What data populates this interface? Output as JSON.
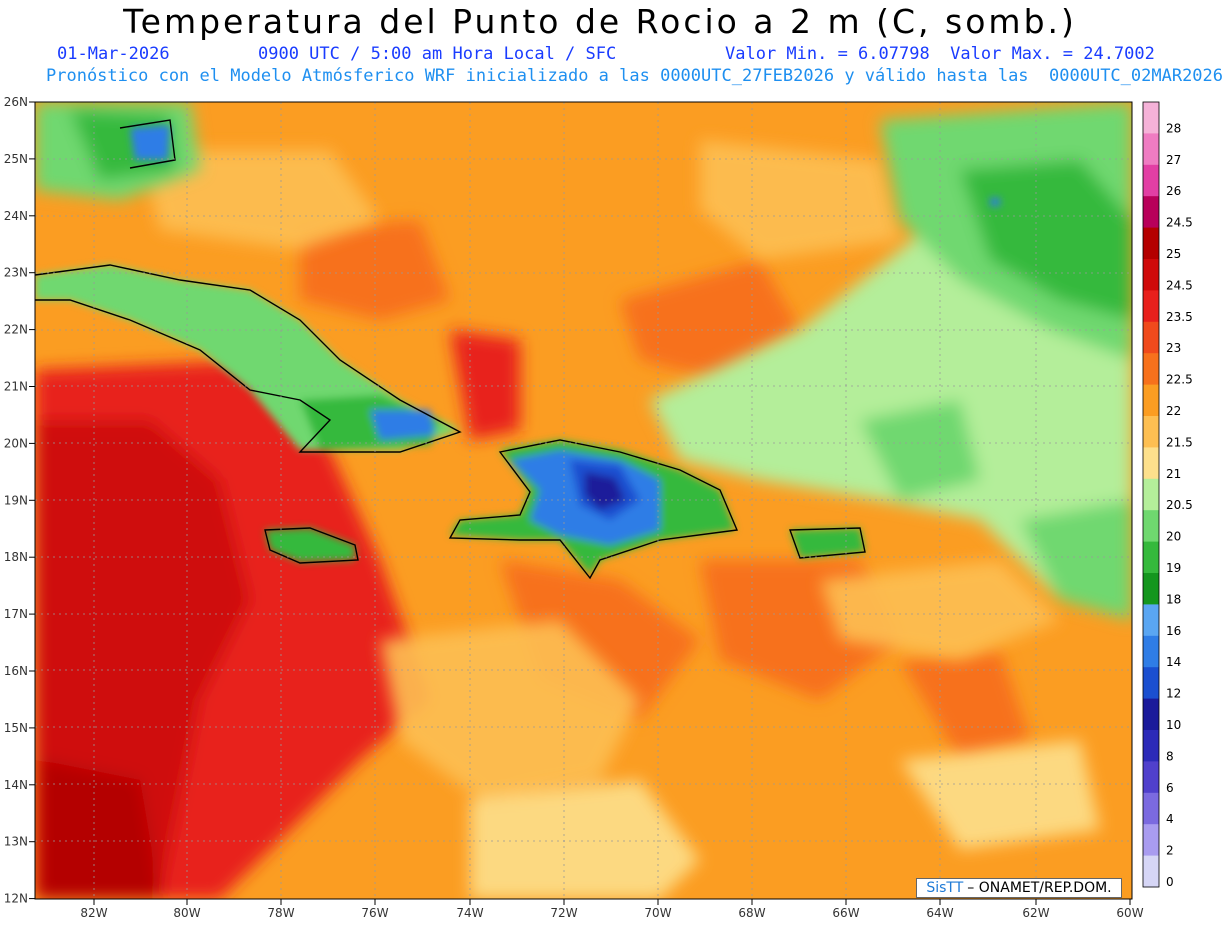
{
  "header": {
    "title": "Temperatura del Punto de Rocio a 2 m (C, somb.)",
    "date": "01-Mar-2026",
    "time": "0900 UTC / 5:00 am Hora Local / SFC",
    "minmax": "Valor Min. = 6.07798  Valor Max. = 24.7002",
    "description": "Pronóstico con el Modelo Atmósferico WRF inicializado a las 0000UTC_27FEB2026 y válido hasta las  0000UTC_02MAR2026"
  },
  "axes": {
    "lon_labels": [
      "82W",
      "80W",
      "78W",
      "76W",
      "74W",
      "72W",
      "70W",
      "68W",
      "66W",
      "64W",
      "62W",
      "60W"
    ],
    "lat_labels": [
      "26N",
      "25N",
      "24N",
      "23N",
      "22N",
      "21N",
      "20N",
      "19N",
      "18N",
      "17N",
      "16N",
      "15N",
      "14N",
      "13N",
      "12N"
    ]
  },
  "colorbar": {
    "levels": [
      {
        "label": "28",
        "color": "#f5b2d8"
      },
      {
        "label": "27",
        "color": "#ef7cc2"
      },
      {
        "label": "26",
        "color": "#e23fa4"
      },
      {
        "label": "24.5",
        "color": "#b8005a"
      },
      {
        "label": "25",
        "color": "#b40000"
      },
      {
        "label": "24.5",
        "color": "#cf0a0a"
      },
      {
        "label": "23.5",
        "color": "#e8201c"
      },
      {
        "label": "23",
        "color": "#f04a1c"
      },
      {
        "label": "22.5",
        "color": "#f7711c"
      },
      {
        "label": "22",
        "color": "#fb9d22"
      },
      {
        "label": "21.5",
        "color": "#fdbf52"
      },
      {
        "label": "21",
        "color": "#fde08c"
      },
      {
        "label": "20.5",
        "color": "#b4ee9a"
      },
      {
        "label": "20",
        "color": "#6fd86f"
      },
      {
        "label": "19",
        "color": "#35b93c"
      },
      {
        "label": "18",
        "color": "#14961e"
      },
      {
        "label": "16",
        "color": "#5aa6f2"
      },
      {
        "label": "14",
        "color": "#2f7de6"
      },
      {
        "label": "12",
        "color": "#1a4fd0"
      },
      {
        "label": "10",
        "color": "#1a1a9a"
      },
      {
        "label": "8",
        "color": "#2c2ab8"
      },
      {
        "label": "6",
        "color": "#5040cc"
      },
      {
        "label": "4",
        "color": "#7b6ae0"
      },
      {
        "label": "2",
        "color": "#a99cf0"
      },
      {
        "label": "0",
        "color": "#d6d6f6"
      }
    ]
  },
  "credit": {
    "brand": "SisTT",
    "text": "– ONAMET/REP.DOM."
  }
}
